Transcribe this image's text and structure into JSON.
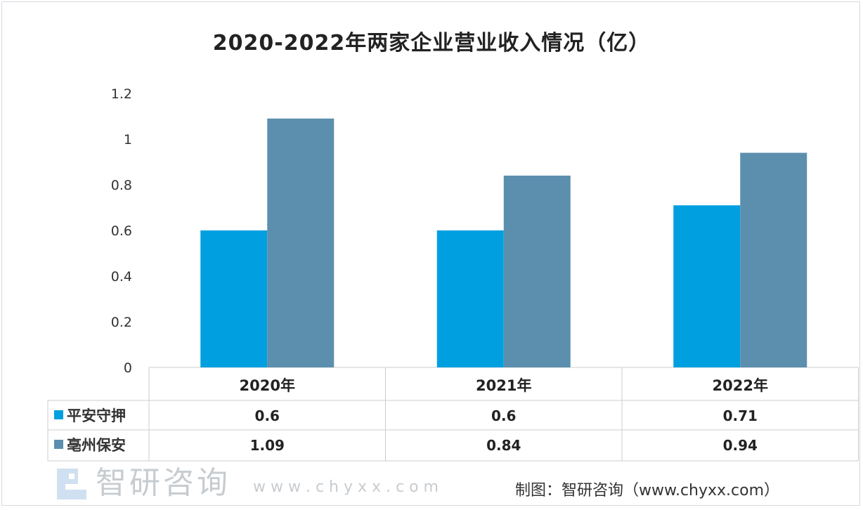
{
  "chart_data": {
    "type": "bar",
    "title": "2020-2022年两家企业营业收入情况（亿）",
    "categories": [
      "2020年",
      "2021年",
      "2022年"
    ],
    "series": [
      {
        "name": "平安守押",
        "values": [
          0.6,
          0.6,
          0.71
        ],
        "color": "#00a0e0"
      },
      {
        "name": "亳州保安",
        "values": [
          1.09,
          0.84,
          0.94
        ],
        "color": "#5b8fad"
      }
    ],
    "yticks": [
      "0",
      "0.2",
      "0.4",
      "0.6",
      "0.8",
      "1",
      "1.2"
    ],
    "ylim": [
      0,
      1.2
    ],
    "grid": false,
    "legend": "data-table"
  },
  "source": "制图：智研咨询（www.chyxx.com）",
  "watermark": {
    "name": "智研咨询",
    "url": "w w w . c h y x x . c o m"
  }
}
